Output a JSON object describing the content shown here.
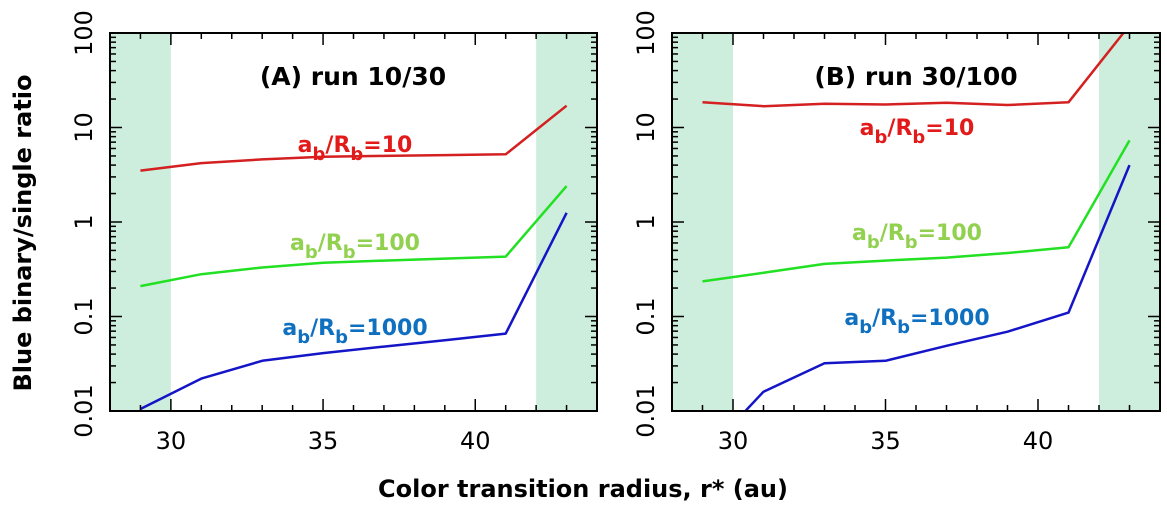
{
  "figure": {
    "ylabel": "Blue binary/single ratio",
    "xlabel": "Color transition radius, r* (au)"
  },
  "chart_data": [
    {
      "type": "line",
      "title": "(A) run 10/30",
      "xlabel": "Color transition radius, r* (au)",
      "ylabel": "Blue binary/single ratio",
      "xlim": [
        28,
        44
      ],
      "ylim": [
        0.01,
        100
      ],
      "yscale": "log",
      "xticks": [
        30,
        35,
        40
      ],
      "yticks": [
        0.01,
        0.1,
        1,
        10,
        100
      ],
      "ytick_labels": [
        "0.01",
        "0.1",
        "1",
        "10",
        "100"
      ],
      "shaded_x_ranges": [
        [
          28,
          30
        ],
        [
          42,
          44
        ]
      ],
      "shade_color": "#cdeedd",
      "series": [
        {
          "label_main": "a",
          "label_sub1": "b",
          "label_mid": "/R",
          "label_sub2": "b",
          "label_tail": "=10",
          "color": "#d42020",
          "label_color": "#e21a1a",
          "x": [
            29,
            31,
            33,
            35,
            37,
            39,
            41,
            43
          ],
          "values": [
            3.5,
            4.2,
            4.6,
            4.9,
            5.0,
            5.1,
            5.2,
            17
          ]
        },
        {
          "label_main": "a",
          "label_sub1": "b",
          "label_mid": "/R",
          "label_sub2": "b",
          "label_tail": "=100",
          "color": "#22e022",
          "label_color": "#92d050",
          "x": [
            29,
            31,
            33,
            35,
            37,
            39,
            41,
            43
          ],
          "values": [
            0.21,
            0.28,
            0.33,
            0.37,
            0.39,
            0.41,
            0.43,
            2.4
          ]
        },
        {
          "label_main": "a",
          "label_sub1": "b",
          "label_mid": "/R",
          "label_sub2": "b",
          "label_tail": "=1000",
          "color": "#1515c8",
          "label_color": "#1070c0",
          "x": [
            29,
            31,
            33,
            35,
            37,
            39,
            41,
            43
          ],
          "values": [
            0.0105,
            0.022,
            0.034,
            0.041,
            0.048,
            0.056,
            0.066,
            1.25
          ]
        }
      ]
    },
    {
      "type": "line",
      "title": "(B) run 30/100",
      "xlabel": "Color transition radius, r* (au)",
      "ylabel": "Blue binary/single ratio",
      "xlim": [
        28,
        44
      ],
      "ylim": [
        0.01,
        100
      ],
      "yscale": "log",
      "xticks": [
        30,
        35,
        40
      ],
      "yticks": [
        0.01,
        0.1,
        1,
        10,
        100
      ],
      "ytick_labels": [
        "0.01",
        "0.1",
        "1",
        "10",
        "100"
      ],
      "shaded_x_ranges": [
        [
          28,
          30
        ],
        [
          42,
          44
        ]
      ],
      "shade_color": "#cdeedd",
      "series": [
        {
          "label_main": "a",
          "label_sub1": "b",
          "label_mid": "/R",
          "label_sub2": "b",
          "label_tail": "=10",
          "color": "#d42020",
          "label_color": "#e21a1a",
          "x": [
            29,
            31,
            33,
            35,
            37,
            39,
            41,
            42.8
          ],
          "values": [
            18.5,
            16.8,
            17.8,
            17.5,
            18.3,
            17.3,
            18.5,
            100
          ]
        },
        {
          "label_main": "a",
          "label_sub1": "b",
          "label_mid": "/R",
          "label_sub2": "b",
          "label_tail": "=100",
          "color": "#22e022",
          "label_color": "#92d050",
          "x": [
            29,
            31,
            33,
            35,
            37,
            39,
            41,
            43
          ],
          "values": [
            0.235,
            0.29,
            0.36,
            0.39,
            0.42,
            0.47,
            0.54,
            7.3
          ]
        },
        {
          "label_main": "a",
          "label_sub1": "b",
          "label_mid": "/R",
          "label_sub2": "b",
          "label_tail": "=1000",
          "color": "#1515c8",
          "label_color": "#1070c0",
          "x": [
            30.2,
            31,
            33,
            35,
            37,
            39,
            41,
            43
          ],
          "values": [
            0.0085,
            0.016,
            0.032,
            0.034,
            0.049,
            0.069,
            0.11,
            4.0
          ]
        }
      ]
    }
  ]
}
